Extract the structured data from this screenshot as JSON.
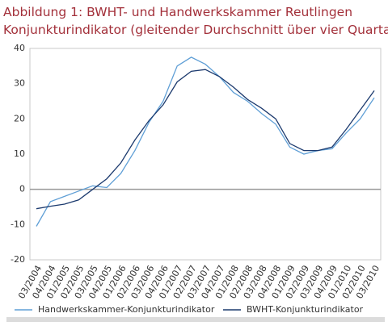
{
  "chart_data": {
    "type": "line",
    "title": [
      "Abbildung 1: BWHT- und Handwerkskammer  Reutlingen",
      "Konjunkturindikator (gleitender Durchschnitt über vier Quartale)"
    ],
    "categories": [
      "03/2004",
      "04/2004",
      "01/2005",
      "02/2005",
      "03/2005",
      "04/2005",
      "01/2006",
      "02/2006",
      "03/2006",
      "04/2006",
      "01/2007",
      "02/2007",
      "03/2007",
      "04/2007",
      "01/2008",
      "02/2008",
      "03/2008",
      "04/2008",
      "01/2009",
      "02/2009",
      "03/2009",
      "04/2009",
      "01/2010",
      "02/2010",
      "03/2010"
    ],
    "series": [
      {
        "name": "Handwerkskammer-Konjunkturindikator",
        "color": "#5f9fd6",
        "values": [
          -10.5,
          -3.5,
          -2,
          -0.5,
          1,
          0.5,
          4.5,
          11,
          19,
          25,
          35,
          37.5,
          35.5,
          32,
          27.5,
          25,
          21.5,
          18.5,
          12,
          10,
          11,
          11.5,
          16,
          20,
          26
        ]
      },
      {
        "name": "BWHT-Konjunkturindikator",
        "color": "#1c3a6e",
        "values": [
          -5.5,
          -4.8,
          -4.2,
          -3,
          0,
          3,
          7.5,
          14,
          19.5,
          24,
          30.5,
          33.5,
          34,
          32,
          29,
          25.5,
          23,
          20,
          13,
          11,
          11,
          12,
          17,
          22.5,
          28
        ]
      }
    ],
    "ylim": [
      -20,
      40
    ],
    "yticks": [
      -20,
      -10,
      0,
      10,
      20,
      30,
      40
    ]
  }
}
